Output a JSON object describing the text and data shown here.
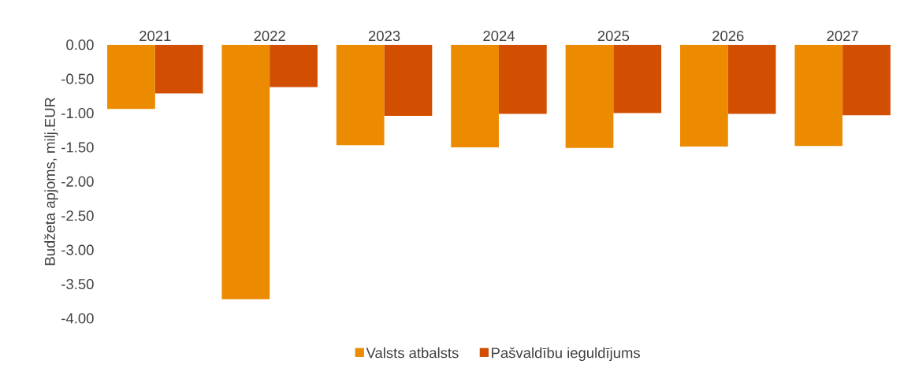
{
  "chart_data": {
    "type": "bar",
    "ylabel": "Budžeta apjoms, milj.EUR",
    "categories": [
      "2021",
      "2022",
      "2023",
      "2024",
      "2025",
      "2026",
      "2027"
    ],
    "series": [
      {
        "name": "Valsts atbalsts",
        "color": "#ed8b00",
        "values": [
          -0.94,
          -3.72,
          -1.47,
          -1.5,
          -1.51,
          -1.49,
          -1.48
        ]
      },
      {
        "name": "Pašvaldību ieguldījums",
        "color": "#d24e00",
        "values": [
          -0.71,
          -0.62,
          -1.04,
          -1.01,
          -1.0,
          -1.01,
          -1.03
        ]
      }
    ],
    "ylim": [
      -4,
      0
    ],
    "yticks": [
      {
        "value": 0,
        "label": "0.00"
      },
      {
        "value": -0.5,
        "label": "-0.50"
      },
      {
        "value": -1,
        "label": "-1.00"
      },
      {
        "value": -1.5,
        "label": "-1.50"
      },
      {
        "value": -2,
        "label": "-2.00"
      },
      {
        "value": -2.5,
        "label": "-2.50"
      },
      {
        "value": -3,
        "label": "-3.00"
      },
      {
        "value": -3.5,
        "label": "-3.50"
      },
      {
        "value": -4,
        "label": "-4.00"
      }
    ],
    "grid": false,
    "legend": "bottom"
  }
}
